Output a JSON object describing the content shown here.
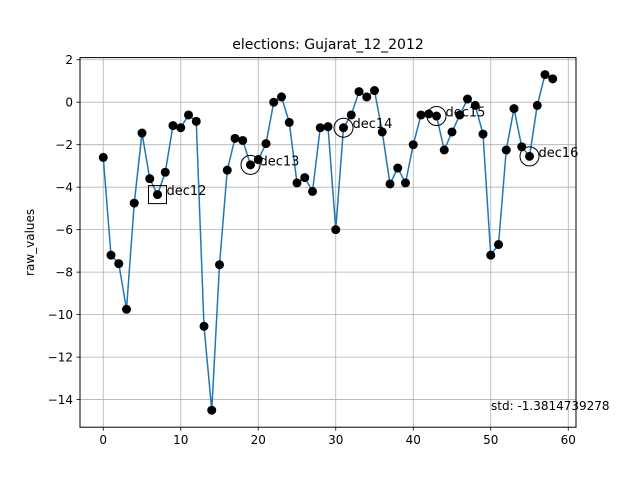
{
  "chart_data": {
    "type": "line",
    "title": "elections: Gujarat_12_2012",
    "xlabel": "",
    "ylabel": "raw_values",
    "xlim": [
      -3,
      61
    ],
    "ylim": [
      -15.3,
      2.1
    ],
    "xticks": [
      0,
      10,
      20,
      30,
      40,
      50,
      60
    ],
    "xtick_labels": [
      "0",
      "10",
      "20",
      "30",
      "40",
      "50",
      "60"
    ],
    "yticks": [
      2,
      0,
      -2,
      -4,
      -6,
      -8,
      -10,
      -12,
      -14
    ],
    "ytick_labels": [
      "2",
      "0",
      "−2",
      "−4",
      "−6",
      "−8",
      "−10",
      "−12",
      "−14"
    ],
    "grid": true,
    "series": [
      {
        "color": "#1f77b4",
        "marker_color": "#000000",
        "x": [
          0,
          1,
          2,
          3,
          4,
          5,
          6,
          7,
          8,
          9,
          10,
          11,
          12,
          13,
          14,
          15,
          16,
          17,
          18,
          19,
          20,
          21,
          22,
          23,
          24,
          25,
          26,
          27,
          28,
          29,
          30,
          31,
          32,
          33,
          34,
          35,
          36,
          37,
          38,
          39,
          40,
          41,
          42,
          43,
          44,
          45,
          46,
          47,
          48,
          49,
          50,
          51,
          52,
          53,
          54,
          55,
          56,
          57,
          58
        ],
        "y": [
          -2.6,
          -7.2,
          -7.6,
          -9.75,
          -4.75,
          -1.45,
          -3.6,
          -4.35,
          -3.3,
          -1.1,
          -1.2,
          -0.6,
          -0.9,
          -10.55,
          -14.5,
          -7.65,
          -3.2,
          -1.7,
          -1.8,
          -2.95,
          -2.7,
          -1.95,
          0.0,
          0.25,
          -0.95,
          -3.8,
          -3.55,
          -4.2,
          -1.2,
          -1.15,
          -6.0,
          -1.2,
          -0.6,
          0.5,
          0.25,
          0.55,
          -1.4,
          -3.85,
          -3.1,
          -3.8,
          -2.0,
          -0.6,
          -0.55,
          -0.65,
          -2.25,
          -1.4,
          -0.6,
          0.15,
          -0.15,
          -1.5,
          -7.2,
          -6.7,
          -2.25,
          -0.3,
          -2.1,
          -2.55,
          -0.15,
          1.3,
          1.1
        ]
      }
    ],
    "annotations": [
      {
        "label": "dec12",
        "x": 7,
        "y": -4.35,
        "marker": "square"
      },
      {
        "label": "dec13",
        "x": 19,
        "y": -2.95,
        "marker": "circle"
      },
      {
        "label": "dec14",
        "x": 31,
        "y": -1.2,
        "marker": "circle"
      },
      {
        "label": "dec15",
        "x": 43,
        "y": -0.65,
        "marker": "circle"
      },
      {
        "label": "dec16",
        "x": 55,
        "y": -2.55,
        "marker": "circle"
      }
    ],
    "footnote": "std: -1.3814739278"
  }
}
